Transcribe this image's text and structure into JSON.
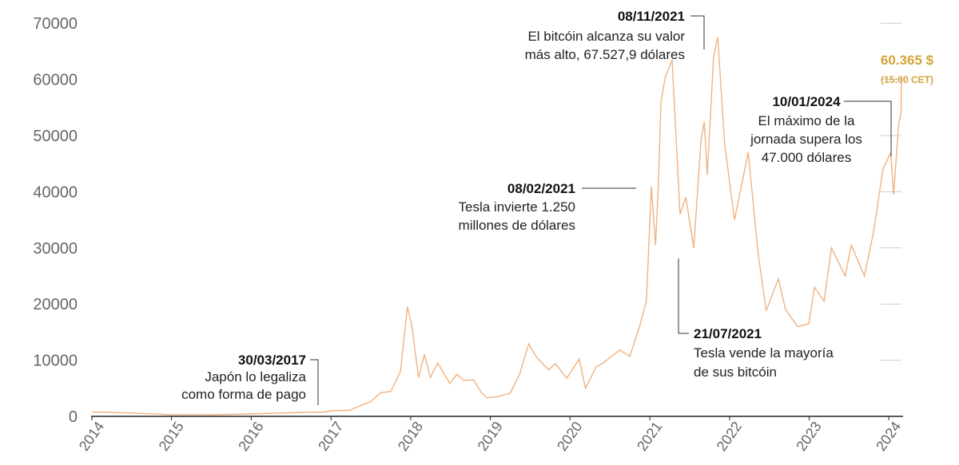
{
  "chart_data": {
    "type": "line",
    "title": "",
    "xlabel": "",
    "ylabel": "",
    "ylim": [
      0,
      75000
    ],
    "y_ticks": [
      "0",
      "10000",
      "20000",
      "30000",
      "40000",
      "50000",
      "60000",
      "70000"
    ],
    "x_ticks": [
      "2014",
      "2015",
      "2016",
      "2017",
      "2018",
      "2019",
      "2020",
      "2021",
      "2022",
      "2023",
      "2024"
    ],
    "grid": false,
    "colors": {
      "line": "#f0b27f",
      "current": "#d4a23a",
      "axis": "#222222",
      "leader": "#333333"
    },
    "series": [
      {
        "x": [
          "2014-01-01",
          "2014-07-01",
          "2015-01-01",
          "2015-07-01",
          "2016-01-01",
          "2016-07-01",
          "2016-12-01",
          "2017-01-01",
          "2017-03-30",
          "2017-05-15",
          "2017-07-01",
          "2017-08-15",
          "2017-10-01",
          "2017-11-15",
          "2017-12-17",
          "2018-01-05",
          "2018-02-06",
          "2018-03-05",
          "2018-04-01",
          "2018-05-05",
          "2018-06-29",
          "2018-08-01",
          "2018-09-01",
          "2018-10-15",
          "2018-11-20",
          "2018-12-15",
          "2019-02-01",
          "2019-04-01",
          "2019-05-15",
          "2019-06-26",
          "2019-08-01",
          "2019-09-25",
          "2019-10-26",
          "2019-12-17",
          "2020-02-12",
          "2020-03-12",
          "2020-04-30",
          "2020-06-01",
          "2020-08-15",
          "2020-10-01",
          "2020-11-15",
          "2020-12-16",
          "2021-01-08",
          "2021-01-27",
          "2021-02-08",
          "2021-02-21",
          "2021-03-13",
          "2021-04-13",
          "2021-05-19",
          "2021-06-15",
          "2021-07-21",
          "2021-08-23",
          "2021-09-07",
          "2021-09-21",
          "2021-10-20",
          "2021-11-08",
          "2021-12-10",
          "2022-01-24",
          "2022-03-28",
          "2022-05-12",
          "2022-06-18",
          "2022-08-13",
          "2022-09-15",
          "2022-11-09",
          "2022-12-31",
          "2023-01-25",
          "2023-03-10",
          "2023-04-13",
          "2023-06-15",
          "2023-07-13",
          "2023-09-11",
          "2023-10-24",
          "2023-12-05",
          "2024-01-10",
          "2024-01-23",
          "2024-02-15",
          "2024-02-26",
          "2024-02-28"
        ],
        "y": [
          800,
          600,
          300,
          280,
          430,
          650,
          780,
          1000,
          1100,
          1900,
          2600,
          4200,
          4400,
          8000,
          19500,
          16500,
          6900,
          11000,
          6900,
          9500,
          5900,
          7500,
          6400,
          6500,
          4300,
          3300,
          3500,
          4100,
          7500,
          12900,
          10500,
          8300,
          9400,
          6800,
          10200,
          5000,
          8800,
          9500,
          11800,
          10700,
          16000,
          20500,
          41000,
          30500,
          40500,
          56000,
          60500,
          63500,
          36000,
          39000,
          30000,
          49000,
          52500,
          43000,
          64000,
          67527,
          48500,
          35000,
          47000,
          29000,
          18800,
          24500,
          19000,
          16000,
          16500,
          23000,
          20500,
          30000,
          25000,
          30500,
          25000,
          33000,
          44000,
          47000,
          39500,
          52000,
          54000,
          60365
        ]
      }
    ],
    "annotations": [
      {
        "date": "30/03/2017",
        "lines": [
          "Japón lo legaliza",
          "como forma de pago"
        ]
      },
      {
        "date": "08/02/2021",
        "lines": [
          "Tesla invierte 1.250",
          "millones de dólares"
        ]
      },
      {
        "date": "08/11/2021",
        "lines": [
          "El bitcóin alcanza su valor",
          "más alto, 67.527,9 dólares"
        ]
      },
      {
        "date": "21/07/2021",
        "lines": [
          "Tesla vende la mayoría",
          "de sus bitcóin"
        ]
      },
      {
        "date": "10/01/2024",
        "lines": [
          "El máximo de la",
          "jornada supera los",
          "47.000 dólares"
        ]
      }
    ],
    "current": {
      "value": "60.365 $",
      "time": "(15:00 CET)"
    }
  }
}
